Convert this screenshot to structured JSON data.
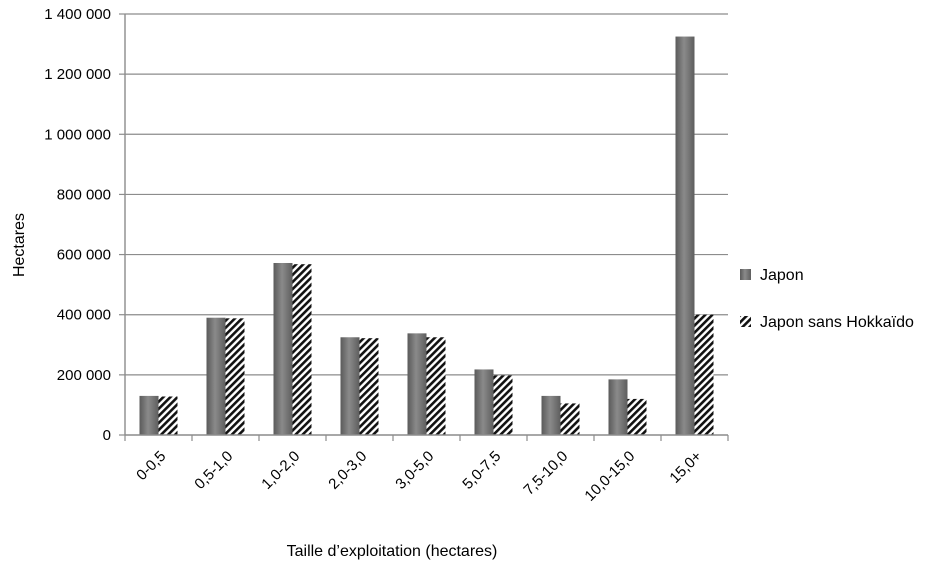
{
  "chart_data": {
    "type": "bar",
    "categories": [
      "0-0,5",
      "0,5-1,0",
      "1,0-2,0",
      "2,0-3,0",
      "3,0-5,0",
      "5,0-7,5",
      "7,5-10,0",
      "10,0-15,0",
      "15,0+"
    ],
    "series": [
      {
        "name": "Japon",
        "values": [
          130000,
          390000,
          572000,
          325000,
          338000,
          218000,
          130000,
          185000,
          1325000
        ]
      },
      {
        "name": "Japon sans Hokkaïdo",
        "values": [
          128000,
          388000,
          568000,
          322000,
          325000,
          198000,
          105000,
          120000,
          400000
        ]
      }
    ],
    "xlabel": "Taille d’exploitation (hectares)",
    "ylabel": "Hectares",
    "ylim": [
      0,
      1400000
    ],
    "yticks": [
      0,
      200000,
      400000,
      600000,
      800000,
      1000000,
      1200000,
      1400000
    ],
    "ytick_labels": [
      "0",
      "200 000",
      "400 000",
      "600 000",
      "800 000",
      "1 000 000",
      "1 200 000",
      "1 400 000"
    ],
    "grid": true,
    "legend_position": "right",
    "colors": {
      "series1": "#6e6e6e",
      "series2_pattern": "#000000",
      "grid": "#8c8c8c",
      "axis": "#8c8c8c"
    }
  }
}
